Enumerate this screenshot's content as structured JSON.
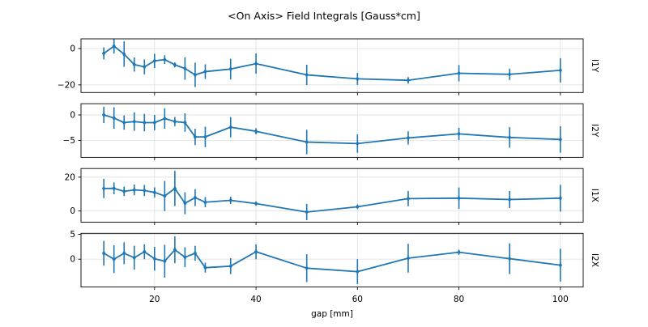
{
  "figure": {
    "title": "<On Axis> Field Integrals [Gauss*cm]",
    "xlabel": "gap [mm]"
  },
  "chart_data": {
    "type": "line",
    "subtype": "errorbar-line-multipanel",
    "title": "<On Axis> Field Integrals [Gauss*cm]",
    "xlabel": "gap [mm]",
    "x": [
      10,
      12,
      14,
      16,
      18,
      20,
      22,
      24,
      26,
      28,
      30,
      35,
      40,
      50,
      60,
      70,
      80,
      90,
      100
    ],
    "xlim": [
      5.5,
      104.5
    ],
    "xticks": [
      20,
      40,
      60,
      80,
      100
    ],
    "grid": true,
    "legend": "none",
    "style": {
      "line_color": "#1f77b4",
      "grid_color": "#e2e2e2",
      "spine_color": "#000000",
      "marker": "thin-diamond",
      "errorbars": true
    },
    "panels": [
      {
        "name": "I1Y",
        "ylabel_right": "I1Y",
        "ylim": [
          -24.2,
          5.3
        ],
        "yticks": [
          0,
          -20
        ],
        "values": [
          -2.7,
          1.3,
          -3.1,
          -8.8,
          -10.1,
          -6.8,
          -6.1,
          -9.0,
          -11.0,
          -14.5,
          -12.7,
          -11.3,
          -8.3,
          -14.5,
          -16.7,
          -17.5,
          -13.6,
          -14.2,
          -12.0
        ],
        "yerr": [
          3.3,
          4.1,
          7.0,
          3.9,
          4.1,
          3.9,
          2.4,
          1.3,
          6.2,
          6.7,
          4.0,
          5.7,
          5.6,
          5.6,
          3.3,
          1.8,
          4.5,
          3.1,
          6.7
        ]
      },
      {
        "name": "I2Y",
        "ylabel_right": "I2Y",
        "ylim": [
          -8.3,
          2.2
        ],
        "yticks": [
          0,
          -5
        ],
        "values": [
          0.0,
          -0.6,
          -1.5,
          -1.3,
          -1.5,
          -1.5,
          -0.7,
          -1.3,
          -1.5,
          -4.3,
          -4.3,
          -2.4,
          -3.2,
          -5.3,
          -5.6,
          -4.5,
          -3.7,
          -4.4,
          -4.8
        ],
        "yerr": [
          1.6,
          2.1,
          1.4,
          1.8,
          1.7,
          1.5,
          2.0,
          0.9,
          1.8,
          1.6,
          2.0,
          2.0,
          0.6,
          2.4,
          1.8,
          1.3,
          1.2,
          2.0,
          2.6
        ]
      },
      {
        "name": "I1X",
        "ylabel_right": "I1X",
        "ylim": [
          -6.6,
          25.1
        ],
        "yticks": [
          20,
          0
        ],
        "values": [
          13.3,
          13.4,
          11.6,
          12.5,
          12.1,
          11.0,
          8.9,
          13.3,
          4.6,
          7.9,
          5.2,
          6.3,
          4.4,
          -0.6,
          2.5,
          7.3,
          7.6,
          6.8,
          7.6
        ],
        "yerr": [
          5.7,
          3.5,
          2.8,
          3.2,
          3.3,
          3.0,
          8.9,
          10.4,
          6.5,
          5.0,
          3.0,
          2.2,
          1.0,
          4.8,
          0.8,
          4.5,
          6.3,
          5.0,
          7.9
        ]
      },
      {
        "name": "I2X",
        "ylabel_right": "I2X",
        "ylim": [
          -5.6,
          5.2
        ],
        "yticks": [
          5,
          0
        ],
        "values": [
          1.2,
          0.0,
          1.2,
          0.3,
          1.5,
          0.1,
          -0.4,
          1.9,
          0.4,
          1.2,
          -1.7,
          -1.4,
          1.5,
          -1.8,
          -2.5,
          0.2,
          1.4,
          0.1,
          -1.2
        ],
        "yerr": [
          2.5,
          2.8,
          2.2,
          2.4,
          1.5,
          2.4,
          3.3,
          2.7,
          2.0,
          1.5,
          1.0,
          1.6,
          1.5,
          2.8,
          2.5,
          2.9,
          0.5,
          3.1,
          3.3
        ]
      }
    ]
  }
}
